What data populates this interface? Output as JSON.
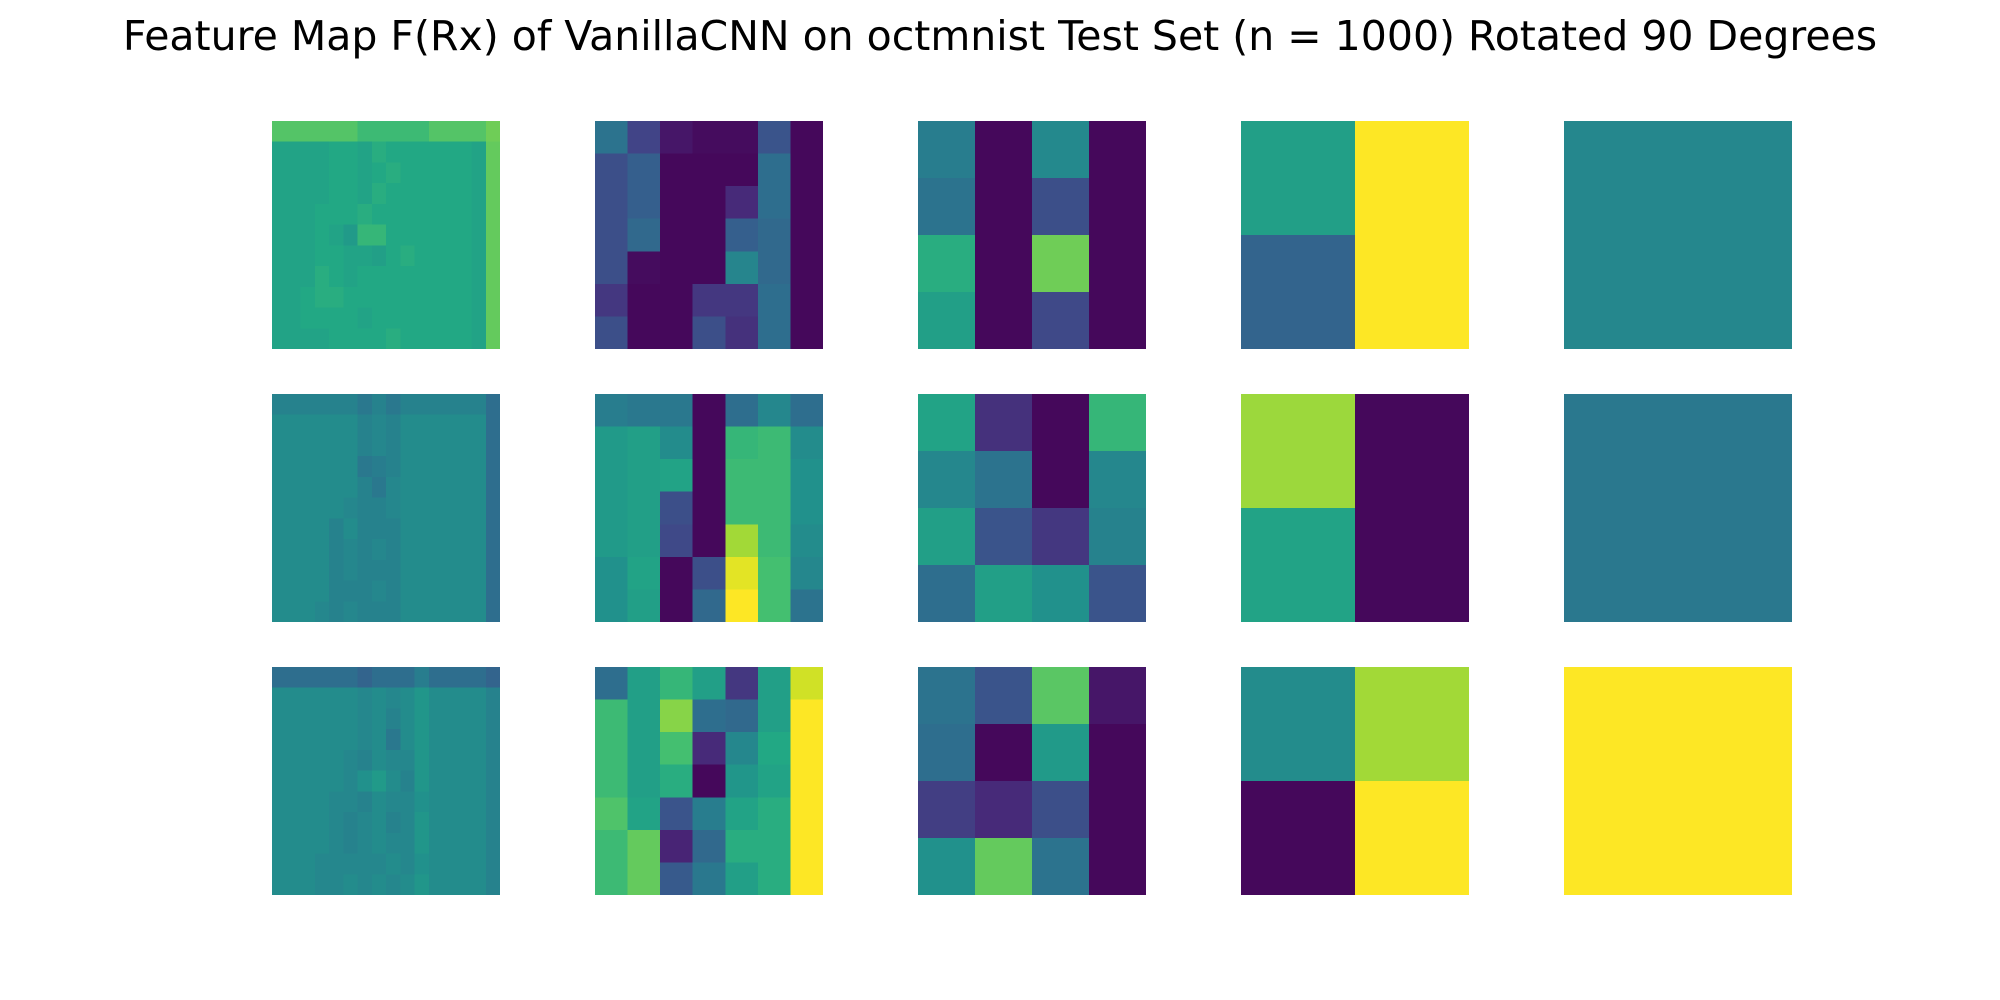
{
  "chart_data": {
    "type": "heatmap",
    "title": "Feature Map F(Rx) of VanillaCNN on octmnist Test Set (n = 1000) Rotated 90 Degrees",
    "colormap": "viridis",
    "value_range": [
      0,
      1
    ],
    "axes_visible": false,
    "rows": 3,
    "cols": 5,
    "panels": [
      [
        {
          "name": "row1-col1",
          "values": [
            [
              0.73,
              0.73,
              0.73,
              0.73,
              0.73,
              0.73,
              0.68,
              0.68,
              0.68,
              0.68,
              0.68,
              0.73,
              0.73,
              0.73,
              0.73,
              0.78
            ],
            [
              0.58,
              0.58,
              0.58,
              0.58,
              0.6,
              0.6,
              0.58,
              0.62,
              0.6,
              0.6,
              0.6,
              0.6,
              0.6,
              0.6,
              0.58,
              0.76
            ],
            [
              0.58,
              0.58,
              0.58,
              0.58,
              0.6,
              0.6,
              0.58,
              0.6,
              0.62,
              0.6,
              0.6,
              0.6,
              0.6,
              0.6,
              0.58,
              0.76
            ],
            [
              0.58,
              0.58,
              0.58,
              0.58,
              0.6,
              0.6,
              0.58,
              0.62,
              0.6,
              0.6,
              0.6,
              0.6,
              0.6,
              0.6,
              0.58,
              0.76
            ],
            [
              0.58,
              0.58,
              0.58,
              0.6,
              0.6,
              0.6,
              0.62,
              0.6,
              0.6,
              0.6,
              0.6,
              0.6,
              0.6,
              0.6,
              0.58,
              0.76
            ],
            [
              0.58,
              0.58,
              0.58,
              0.6,
              0.58,
              0.54,
              0.66,
              0.66,
              0.6,
              0.6,
              0.6,
              0.6,
              0.6,
              0.6,
              0.58,
              0.76
            ],
            [
              0.58,
              0.58,
              0.58,
              0.6,
              0.6,
              0.58,
              0.58,
              0.56,
              0.6,
              0.62,
              0.6,
              0.6,
              0.6,
              0.6,
              0.58,
              0.76
            ],
            [
              0.58,
              0.58,
              0.58,
              0.62,
              0.6,
              0.58,
              0.6,
              0.6,
              0.6,
              0.6,
              0.6,
              0.6,
              0.6,
              0.6,
              0.58,
              0.76
            ],
            [
              0.58,
              0.58,
              0.6,
              0.62,
              0.62,
              0.6,
              0.6,
              0.6,
              0.6,
              0.6,
              0.6,
              0.6,
              0.6,
              0.6,
              0.58,
              0.76
            ],
            [
              0.58,
              0.58,
              0.6,
              0.6,
              0.6,
              0.6,
              0.58,
              0.6,
              0.6,
              0.6,
              0.6,
              0.6,
              0.6,
              0.6,
              0.58,
              0.76
            ],
            [
              0.58,
              0.58,
              0.58,
              0.58,
              0.6,
              0.6,
              0.6,
              0.6,
              0.62,
              0.6,
              0.6,
              0.6,
              0.6,
              0.6,
              0.58,
              0.76
            ]
          ]
        },
        {
          "name": "row1-col2",
          "values": [
            [
              0.38,
              0.2,
              0.06,
              0.03,
              0.03,
              0.26,
              0.02
            ],
            [
              0.24,
              0.3,
              0.02,
              0.02,
              0.02,
              0.36,
              0.02
            ],
            [
              0.24,
              0.3,
              0.02,
              0.02,
              0.12,
              0.36,
              0.02
            ],
            [
              0.24,
              0.34,
              0.02,
              0.02,
              0.3,
              0.34,
              0.02
            ],
            [
              0.24,
              0.03,
              0.02,
              0.02,
              0.45,
              0.34,
              0.02
            ],
            [
              0.16,
              0.02,
              0.02,
              0.16,
              0.16,
              0.36,
              0.02
            ],
            [
              0.24,
              0.02,
              0.02,
              0.24,
              0.14,
              0.36,
              0.02
            ]
          ]
        },
        {
          "name": "row1-col3",
          "values": [
            [
              0.42,
              0.02,
              0.47,
              0.02
            ],
            [
              0.38,
              0.02,
              0.24,
              0.02
            ],
            [
              0.62,
              0.02,
              0.78,
              0.02
            ],
            [
              0.56,
              0.02,
              0.22,
              0.02
            ]
          ]
        },
        {
          "name": "row1-col4",
          "values": [
            [
              0.56,
              1.0
            ],
            [
              0.32,
              1.0
            ]
          ]
        },
        {
          "name": "row1-col5",
          "values": [
            [
              0.46
            ]
          ]
        }
      ],
      [
        {
          "name": "row2-col1",
          "values": [
            [
              0.44,
              0.44,
              0.44,
              0.44,
              0.44,
              0.44,
              0.4,
              0.44,
              0.4,
              0.44,
              0.44,
              0.44,
              0.44,
              0.44,
              0.44,
              0.36
            ],
            [
              0.48,
              0.48,
              0.48,
              0.48,
              0.48,
              0.48,
              0.44,
              0.46,
              0.44,
              0.48,
              0.48,
              0.48,
              0.48,
              0.48,
              0.48,
              0.36
            ],
            [
              0.48,
              0.48,
              0.48,
              0.48,
              0.48,
              0.48,
              0.44,
              0.46,
              0.44,
              0.48,
              0.48,
              0.48,
              0.48,
              0.48,
              0.48,
              0.36
            ],
            [
              0.48,
              0.48,
              0.48,
              0.48,
              0.48,
              0.48,
              0.4,
              0.42,
              0.44,
              0.48,
              0.48,
              0.48,
              0.48,
              0.48,
              0.48,
              0.36
            ],
            [
              0.48,
              0.48,
              0.48,
              0.48,
              0.48,
              0.48,
              0.44,
              0.4,
              0.46,
              0.48,
              0.48,
              0.48,
              0.48,
              0.48,
              0.48,
              0.36
            ],
            [
              0.48,
              0.48,
              0.48,
              0.48,
              0.48,
              0.46,
              0.44,
              0.44,
              0.46,
              0.48,
              0.48,
              0.48,
              0.48,
              0.48,
              0.48,
              0.36
            ],
            [
              0.48,
              0.48,
              0.48,
              0.48,
              0.44,
              0.48,
              0.44,
              0.44,
              0.44,
              0.48,
              0.48,
              0.48,
              0.48,
              0.48,
              0.48,
              0.36
            ],
            [
              0.48,
              0.48,
              0.48,
              0.48,
              0.44,
              0.46,
              0.44,
              0.46,
              0.44,
              0.48,
              0.48,
              0.48,
              0.48,
              0.48,
              0.48,
              0.36
            ],
            [
              0.48,
              0.48,
              0.48,
              0.48,
              0.44,
              0.46,
              0.44,
              0.44,
              0.44,
              0.48,
              0.48,
              0.48,
              0.48,
              0.48,
              0.48,
              0.36
            ],
            [
              0.48,
              0.48,
              0.48,
              0.48,
              0.44,
              0.44,
              0.44,
              0.46,
              0.44,
              0.48,
              0.48,
              0.48,
              0.48,
              0.48,
              0.48,
              0.36
            ],
            [
              0.48,
              0.48,
              0.48,
              0.46,
              0.44,
              0.46,
              0.44,
              0.44,
              0.44,
              0.48,
              0.48,
              0.48,
              0.48,
              0.48,
              0.48,
              0.36
            ]
          ]
        },
        {
          "name": "row2-col2",
          "values": [
            [
              0.42,
              0.4,
              0.4,
              0.02,
              0.36,
              0.46,
              0.36
            ],
            [
              0.54,
              0.56,
              0.48,
              0.02,
              0.66,
              0.68,
              0.48
            ],
            [
              0.54,
              0.56,
              0.58,
              0.02,
              0.68,
              0.68,
              0.5
            ],
            [
              0.54,
              0.56,
              0.24,
              0.02,
              0.68,
              0.68,
              0.5
            ],
            [
              0.54,
              0.56,
              0.22,
              0.02,
              0.86,
              0.68,
              0.48
            ],
            [
              0.5,
              0.58,
              0.02,
              0.24,
              0.96,
              0.7,
              0.46
            ],
            [
              0.5,
              0.56,
              0.02,
              0.34,
              1.0,
              0.7,
              0.38
            ]
          ]
        },
        {
          "name": "row2-col3",
          "values": [
            [
              0.58,
              0.14,
              0.02,
              0.66
            ],
            [
              0.46,
              0.38,
              0.02,
              0.46
            ],
            [
              0.56,
              0.26,
              0.16,
              0.44
            ],
            [
              0.36,
              0.56,
              0.5,
              0.26
            ]
          ]
        },
        {
          "name": "row2-col4",
          "values": [
            [
              0.85,
              0.02
            ],
            [
              0.58,
              0.02
            ]
          ]
        },
        {
          "name": "row2-col5",
          "values": [
            [
              0.4
            ]
          ]
        }
      ],
      [
        {
          "name": "row3-col1",
          "values": [
            [
              0.36,
              0.36,
              0.36,
              0.36,
              0.36,
              0.36,
              0.32,
              0.36,
              0.36,
              0.36,
              0.42,
              0.36,
              0.36,
              0.36,
              0.36,
              0.32
            ],
            [
              0.48,
              0.48,
              0.48,
              0.48,
              0.48,
              0.48,
              0.46,
              0.48,
              0.46,
              0.48,
              0.52,
              0.48,
              0.48,
              0.48,
              0.48,
              0.44
            ],
            [
              0.48,
              0.48,
              0.48,
              0.48,
              0.48,
              0.48,
              0.46,
              0.48,
              0.44,
              0.48,
              0.52,
              0.48,
              0.48,
              0.48,
              0.48,
              0.44
            ],
            [
              0.48,
              0.48,
              0.48,
              0.48,
              0.48,
              0.48,
              0.46,
              0.48,
              0.4,
              0.48,
              0.52,
              0.48,
              0.48,
              0.48,
              0.48,
              0.44
            ],
            [
              0.48,
              0.48,
              0.48,
              0.48,
              0.48,
              0.46,
              0.44,
              0.48,
              0.46,
              0.46,
              0.52,
              0.48,
              0.48,
              0.48,
              0.48,
              0.44
            ],
            [
              0.48,
              0.48,
              0.48,
              0.48,
              0.48,
              0.46,
              0.5,
              0.54,
              0.48,
              0.44,
              0.52,
              0.48,
              0.48,
              0.48,
              0.48,
              0.44
            ],
            [
              0.48,
              0.48,
              0.48,
              0.48,
              0.46,
              0.46,
              0.44,
              0.48,
              0.46,
              0.46,
              0.5,
              0.48,
              0.48,
              0.48,
              0.48,
              0.44
            ],
            [
              0.48,
              0.48,
              0.48,
              0.48,
              0.46,
              0.44,
              0.46,
              0.48,
              0.44,
              0.46,
              0.52,
              0.48,
              0.48,
              0.48,
              0.48,
              0.44
            ],
            [
              0.48,
              0.48,
              0.48,
              0.48,
              0.46,
              0.44,
              0.46,
              0.48,
              0.46,
              0.46,
              0.52,
              0.48,
              0.48,
              0.48,
              0.48,
              0.44
            ],
            [
              0.48,
              0.48,
              0.48,
              0.46,
              0.46,
              0.46,
              0.46,
              0.46,
              0.48,
              0.46,
              0.5,
              0.48,
              0.48,
              0.48,
              0.48,
              0.44
            ],
            [
              0.48,
              0.48,
              0.48,
              0.46,
              0.46,
              0.48,
              0.46,
              0.48,
              0.46,
              0.48,
              0.52,
              0.48,
              0.48,
              0.48,
              0.48,
              0.44
            ]
          ]
        },
        {
          "name": "row3-col2",
          "values": [
            [
              0.36,
              0.56,
              0.66,
              0.56,
              0.16,
              0.56,
              0.93
            ],
            [
              0.68,
              0.56,
              0.82,
              0.36,
              0.34,
              0.56,
              1.0
            ],
            [
              0.68,
              0.56,
              0.7,
              0.12,
              0.46,
              0.6,
              1.0
            ],
            [
              0.68,
              0.56,
              0.62,
              0.02,
              0.52,
              0.58,
              1.0
            ],
            [
              0.72,
              0.58,
              0.26,
              0.42,
              0.58,
              0.62,
              1.0
            ],
            [
              0.68,
              0.76,
              0.1,
              0.34,
              0.62,
              0.62,
              1.0
            ],
            [
              0.68,
              0.76,
              0.28,
              0.4,
              0.56,
              0.62,
              1.0
            ]
          ]
        },
        {
          "name": "row3-col3",
          "values": [
            [
              0.38,
              0.26,
              0.74,
              0.06
            ],
            [
              0.36,
              0.02,
              0.54,
              0.02
            ],
            [
              0.18,
              0.12,
              0.24,
              0.02
            ],
            [
              0.5,
              0.76,
              0.38,
              0.02
            ]
          ]
        },
        {
          "name": "row3-col4",
          "values": [
            [
              0.48,
              0.86
            ],
            [
              0.02,
              1.0
            ]
          ]
        },
        {
          "name": "row3-col5",
          "values": [
            [
              1.0
            ]
          ]
        }
      ]
    ]
  }
}
